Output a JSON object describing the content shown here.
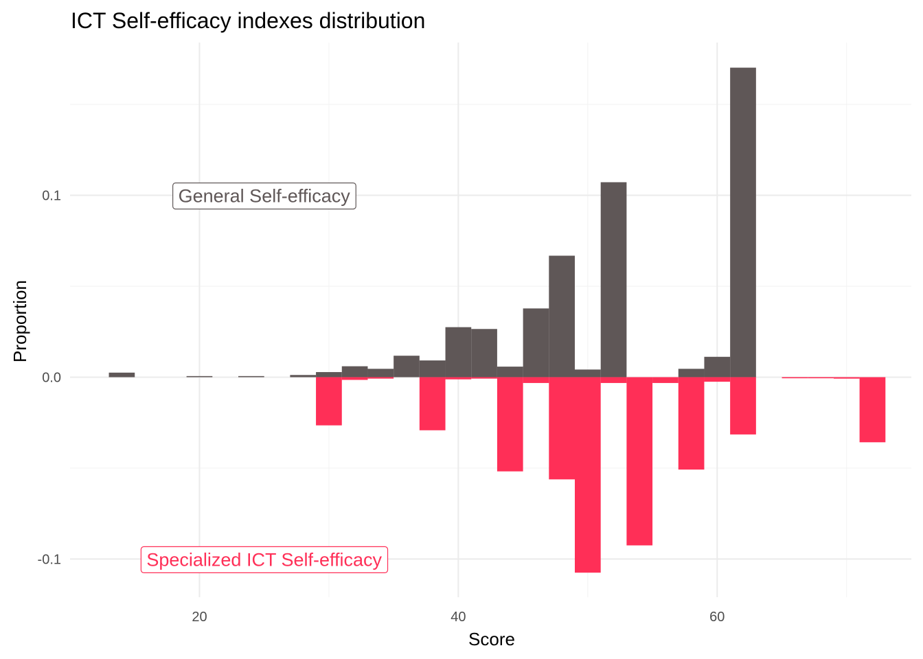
{
  "chart_data": {
    "type": "bar",
    "title": "ICT Self-efficacy indexes distribution",
    "xlabel": "Score",
    "ylabel": "Proportion",
    "xlim": [
      10,
      75
    ],
    "ylim": [
      -0.121,
      0.184
    ],
    "x_ticks": [
      {
        "value": 20,
        "label": "20"
      },
      {
        "value": 40,
        "label": "40"
      },
      {
        "value": 60,
        "label": "60"
      }
    ],
    "y_ticks": [
      {
        "value": -0.1,
        "label": "-0.1"
      },
      {
        "value": 0.0,
        "label": "0.0"
      },
      {
        "value": 0.1,
        "label": "0.1"
      }
    ],
    "grid": true,
    "bin_width": 2,
    "series": [
      {
        "name": "General Self-efficacy",
        "color": "#5f5757",
        "sign": 1,
        "x": [
          14,
          20,
          24,
          28,
          30,
          32,
          34,
          36,
          38,
          40,
          42,
          44,
          46,
          48,
          50,
          52,
          58,
          60,
          62
        ],
        "values": [
          0.0025,
          0.0006,
          0.0006,
          0.0012,
          0.0028,
          0.006,
          0.0046,
          0.0118,
          0.0092,
          0.0275,
          0.0265,
          0.0058,
          0.0378,
          0.0668,
          0.0042,
          0.1072,
          0.0046,
          0.0112,
          0.1702
        ]
      },
      {
        "name": "Specialized ICT Self-efficacy",
        "color": "#ff2f57",
        "sign": -1,
        "x": [
          30,
          32,
          34,
          38,
          40,
          42,
          44,
          46,
          48,
          50,
          52,
          54,
          56,
          58,
          60,
          62,
          66,
          68,
          70,
          72
        ],
        "values": [
          0.0265,
          0.0015,
          0.0008,
          0.0292,
          0.0012,
          0.0008,
          0.0518,
          0.0032,
          0.0562,
          0.1075,
          0.0032,
          0.0925,
          0.0032,
          0.0508,
          0.0025,
          0.0315,
          0.0006,
          0.0006,
          0.0008,
          0.0358
        ]
      }
    ],
    "annotations": [
      {
        "text": "General Self-efficacy",
        "x": 25,
        "y": 0.1,
        "color": "#5f5757"
      },
      {
        "text": "Specialized ICT Self-efficacy",
        "x": 25,
        "y": -0.1,
        "color": "#ff2f57"
      }
    ]
  }
}
